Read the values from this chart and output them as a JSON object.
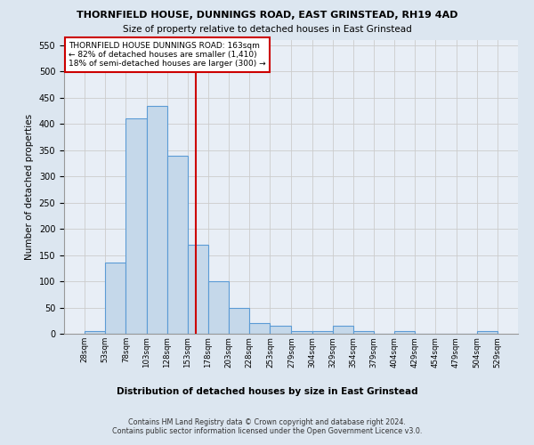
{
  "title1": "THORNFIELD HOUSE, DUNNINGS ROAD, EAST GRINSTEAD, RH19 4AD",
  "title2": "Size of property relative to detached houses in East Grinstead",
  "xlabel": "Distribution of detached houses by size in East Grinstead",
  "ylabel": "Number of detached properties",
  "footnote1": "Contains HM Land Registry data © Crown copyright and database right 2024.",
  "footnote2": "Contains public sector information licensed under the Open Government Licence v3.0.",
  "annotation_line1": "THORNFIELD HOUSE DUNNINGS ROAD: 163sqm",
  "annotation_line2": "← 82% of detached houses are smaller (1,410)",
  "annotation_line3": "18% of semi-detached houses are larger (300) →",
  "bar_lefts": [
    28,
    53,
    78,
    103,
    128,
    153,
    178,
    203,
    228,
    253,
    279,
    304,
    329,
    354,
    379,
    404,
    429,
    454,
    479,
    504
  ],
  "bar_heights": [
    5,
    135,
    410,
    435,
    340,
    170,
    100,
    50,
    20,
    15,
    5,
    5,
    15,
    5,
    0,
    5,
    0,
    0,
    0,
    5
  ],
  "bin_width": 25,
  "xtick_labels": [
    "28sqm",
    "53sqm",
    "78sqm",
    "103sqm",
    "128sqm",
    "153sqm",
    "178sqm",
    "203sqm",
    "228sqm",
    "253sqm",
    "279sqm",
    "304sqm",
    "329sqm",
    "354sqm",
    "379sqm",
    "404sqm",
    "429sqm",
    "454sqm",
    "479sqm",
    "504sqm",
    "529sqm"
  ],
  "xtick_positions": [
    28,
    53,
    78,
    103,
    128,
    153,
    178,
    203,
    228,
    253,
    279,
    304,
    329,
    354,
    379,
    404,
    429,
    454,
    479,
    504,
    529
  ],
  "property_line_x": 163,
  "ylim": [
    0,
    560
  ],
  "yticks": [
    0,
    50,
    100,
    150,
    200,
    250,
    300,
    350,
    400,
    450,
    500,
    550
  ],
  "bar_color": "#c5d8ea",
  "bar_edge_color": "#5b9bd5",
  "vline_color": "#cc0000",
  "grid_color": "#cccccc",
  "background_color": "#dce6f0",
  "plot_bg_color": "#e8eef6"
}
